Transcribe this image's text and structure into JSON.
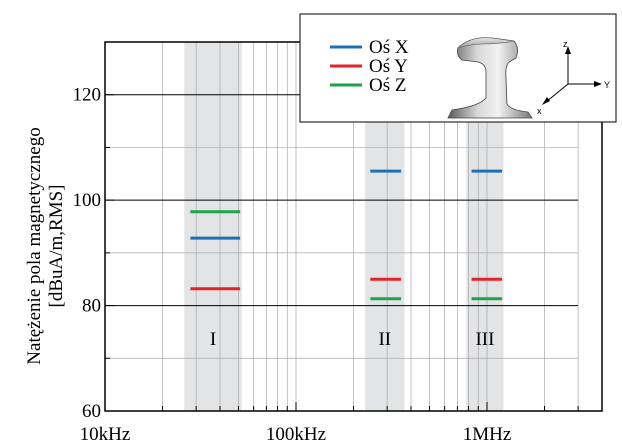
{
  "chart_data": {
    "type": "line",
    "title": "",
    "xlabel": "",
    "ylabel": [
      "Natężenie pola magnetycznego",
      "[dBuA/m,RMS]"
    ],
    "x_scale": "log",
    "xlim": [
      10000,
      4000000
    ],
    "ylim": [
      60,
      130
    ],
    "grid": true,
    "x_ticks": [
      {
        "value": 10000,
        "label": "10kHz"
      },
      {
        "value": 100000,
        "label": "100kHz"
      },
      {
        "value": 1000000,
        "label": "1MHz"
      }
    ],
    "y_ticks": [
      {
        "value": 60,
        "label": "60"
      },
      {
        "value": 80,
        "label": "80"
      },
      {
        "value": 100,
        "label": "100"
      },
      {
        "value": 120,
        "label": "120"
      }
    ],
    "bands": [
      {
        "label": "I",
        "x_range": [
          26000,
          52000
        ]
      },
      {
        "label": "II",
        "x_range": [
          230000,
          370000
        ]
      },
      {
        "label": "III",
        "x_range": [
          780000,
          1220000
        ]
      }
    ],
    "series": [
      {
        "name": "Oś X",
        "color": "#1f6fb2",
        "segments": [
          {
            "x_range": [
              28000,
              51000
            ],
            "y": 92.8
          },
          {
            "x_range": [
              245000,
              355000
            ],
            "y": 105.5
          },
          {
            "x_range": [
              830000,
              1200000
            ],
            "y": 105.5
          }
        ]
      },
      {
        "name": "Oś Y",
        "color": "#e2242b",
        "segments": [
          {
            "x_range": [
              28000,
              51000
            ],
            "y": 83.2
          },
          {
            "x_range": [
              245000,
              355000
            ],
            "y": 85.0
          },
          {
            "x_range": [
              830000,
              1200000
            ],
            "y": 85.0
          }
        ]
      },
      {
        "name": "Oś Z",
        "color": "#1ea24a",
        "segments": [
          {
            "x_range": [
              28000,
              51000
            ],
            "y": 97.8
          },
          {
            "x_range": [
              245000,
              355000
            ],
            "y": 81.3
          },
          {
            "x_range": [
              830000,
              1200000
            ],
            "y": 81.3
          }
        ]
      }
    ],
    "legend": {
      "placement": "top-right",
      "items": [
        "Oś X",
        "Oś Y",
        "Oś Z"
      ],
      "inset_image": "rail-profile with axes",
      "axis_letters": {
        "z": "z",
        "y": "Y",
        "x": "x"
      }
    }
  }
}
